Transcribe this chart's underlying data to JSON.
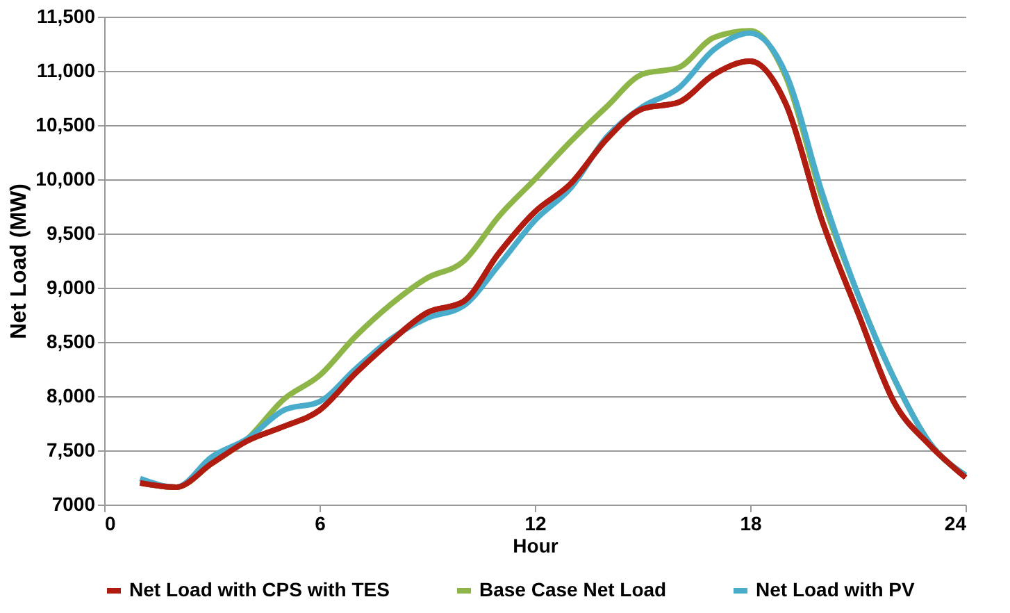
{
  "chart_data": {
    "type": "line",
    "xlabel": "Hour",
    "ylabel": "Net Load (MW)",
    "x": [
      1,
      2,
      3,
      4,
      5,
      6,
      7,
      8,
      9,
      10,
      11,
      12,
      13,
      14,
      15,
      16,
      17,
      18,
      19,
      20,
      21,
      22,
      23,
      24
    ],
    "series": [
      {
        "name": "Net Load with CPS with TES",
        "color": "#b01c10",
        "values": [
          7200,
          7160,
          7380,
          7590,
          7720,
          7870,
          8210,
          8510,
          8770,
          8870,
          9320,
          9700,
          9960,
          10370,
          10650,
          10710,
          10970,
          11090,
          10690,
          9620,
          8770,
          7950,
          7550,
          7250
        ]
      },
      {
        "name": "Base Case Net Load",
        "color": "#8db548",
        "values": [
          7200,
          7160,
          7380,
          7610,
          7970,
          8190,
          8550,
          8850,
          9090,
          9240,
          9660,
          10000,
          10350,
          10670,
          10970,
          11030,
          11310,
          11370,
          10940,
          9830,
          8940,
          8170,
          7570,
          7270
        ]
      },
      {
        "name": "Net Load with PV",
        "color": "#4aaccb",
        "values": [
          7240,
          7160,
          7440,
          7610,
          7870,
          7950,
          8250,
          8530,
          8720,
          8830,
          9210,
          9620,
          9920,
          10390,
          10670,
          10840,
          11200,
          11350,
          10970,
          9880,
          8940,
          8170,
          7570,
          7270
        ]
      }
    ],
    "xlim": [
      0,
      24
    ],
    "xticks": [
      0,
      6,
      12,
      18,
      24
    ],
    "ylim": [
      7000,
      11500
    ],
    "yticks": [
      {
        "value": 7000,
        "label": "7000"
      },
      {
        "value": 7500,
        "label": "7,500"
      },
      {
        "value": 8000,
        "label": "8,000"
      },
      {
        "value": 8500,
        "label": "8,500"
      },
      {
        "value": 9000,
        "label": "9,000"
      },
      {
        "value": 9500,
        "label": "9,500"
      },
      {
        "value": 10000,
        "label": "10,000"
      },
      {
        "value": 10500,
        "label": "10,500"
      },
      {
        "value": 11000,
        "label": "11,000"
      },
      {
        "value": 11500,
        "label": "11,500"
      }
    ],
    "grid": "y",
    "legend": "bottom",
    "marker": "none",
    "line_style": "solid"
  }
}
